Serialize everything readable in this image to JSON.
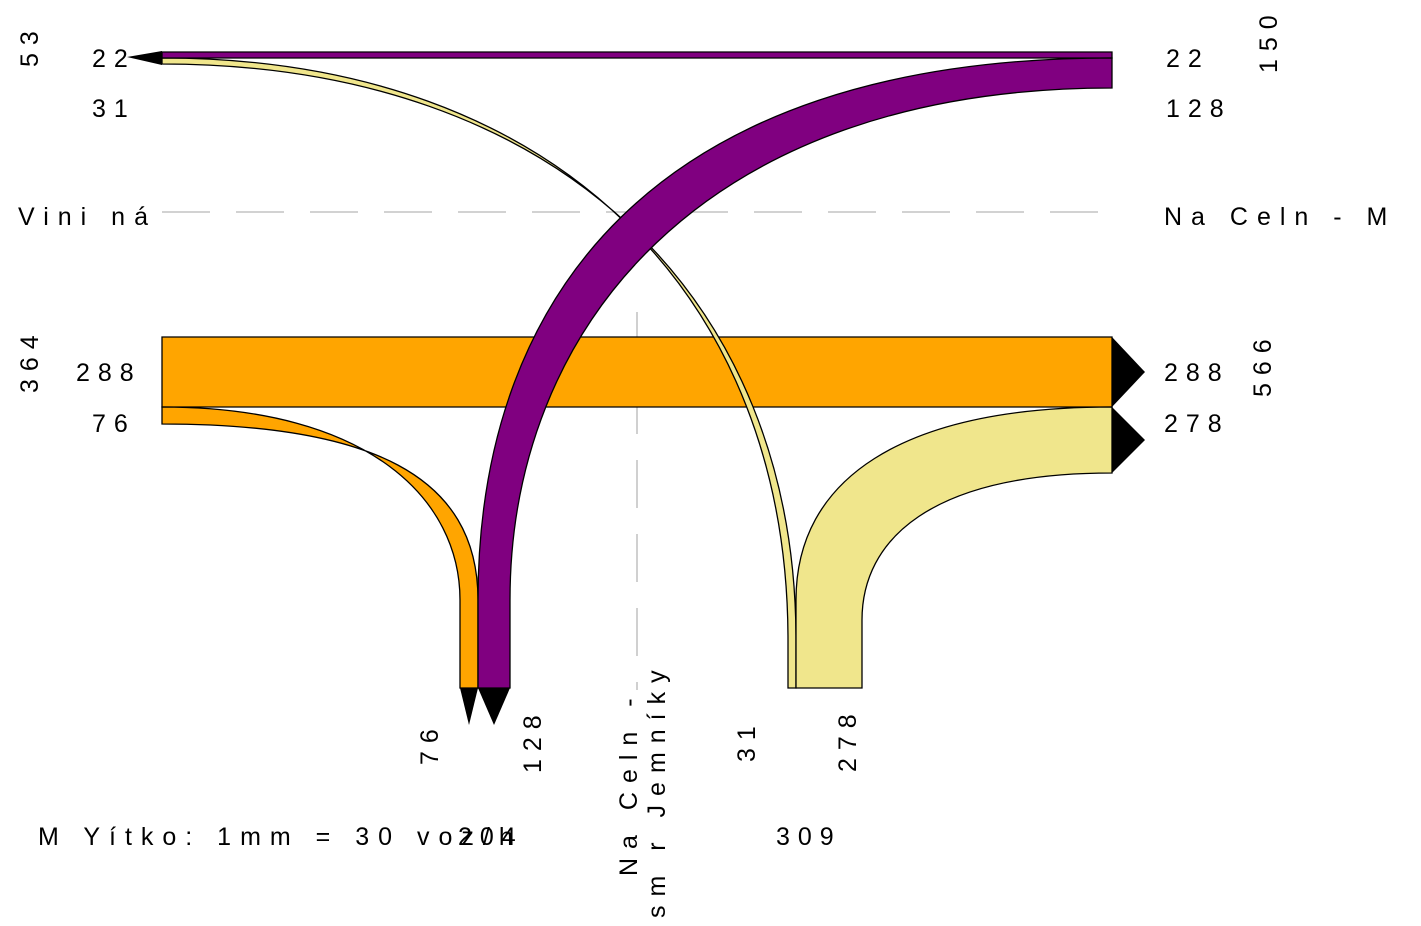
{
  "title": "",
  "colors": {
    "orange": "#FFA500",
    "purple": "#800080",
    "yellow": "#F0E68C",
    "arrow": "#000000",
    "dash": "#B7B7B7"
  },
  "approaches": {
    "west": {
      "name": "Vini ná",
      "total_out": "53",
      "total_in": "364",
      "out_straight": "22",
      "out_right": "31",
      "in_straight": "288",
      "in_left": "76"
    },
    "east": {
      "name": "Na Celn   - M",
      "total_out": "150",
      "total_in": "566",
      "out_straight": "22",
      "out_left": "128",
      "in_straight": "288",
      "in_right": "278"
    },
    "south": {
      "name_line1": "Na Celn  -",
      "name_line2": "sm r Jemníky",
      "total_left": "204",
      "total_right": "309",
      "flow_a": "76",
      "flow_b": "128",
      "flow_c": "31",
      "flow_d": "278"
    }
  },
  "scale_text": "M Yítko: 1mm = 30 voz/h",
  "flows": [
    {
      "from": "Na Celn - M",
      "to": "Vini ná",
      "volume": 22,
      "color": "purple"
    },
    {
      "from": "Vini ná",
      "to": "Na Celn - smr Jemníky",
      "volume": 31,
      "color": "yellow"
    },
    {
      "from": "Na Celn - smr Jemníky",
      "to": "Na Celn - M",
      "volume": 128,
      "color": "purple"
    },
    {
      "from": "Vini ná",
      "to": "Na Celn - M",
      "volume": 288,
      "color": "orange"
    },
    {
      "from": "Vini ná",
      "to": "Na Celn - smr Jemníky",
      "volume": 76,
      "color": "orange"
    },
    {
      "from": "Na Celn - smr Jemníky",
      "to": "Na Celn - M",
      "volume": 278,
      "color": "yellow"
    }
  ]
}
